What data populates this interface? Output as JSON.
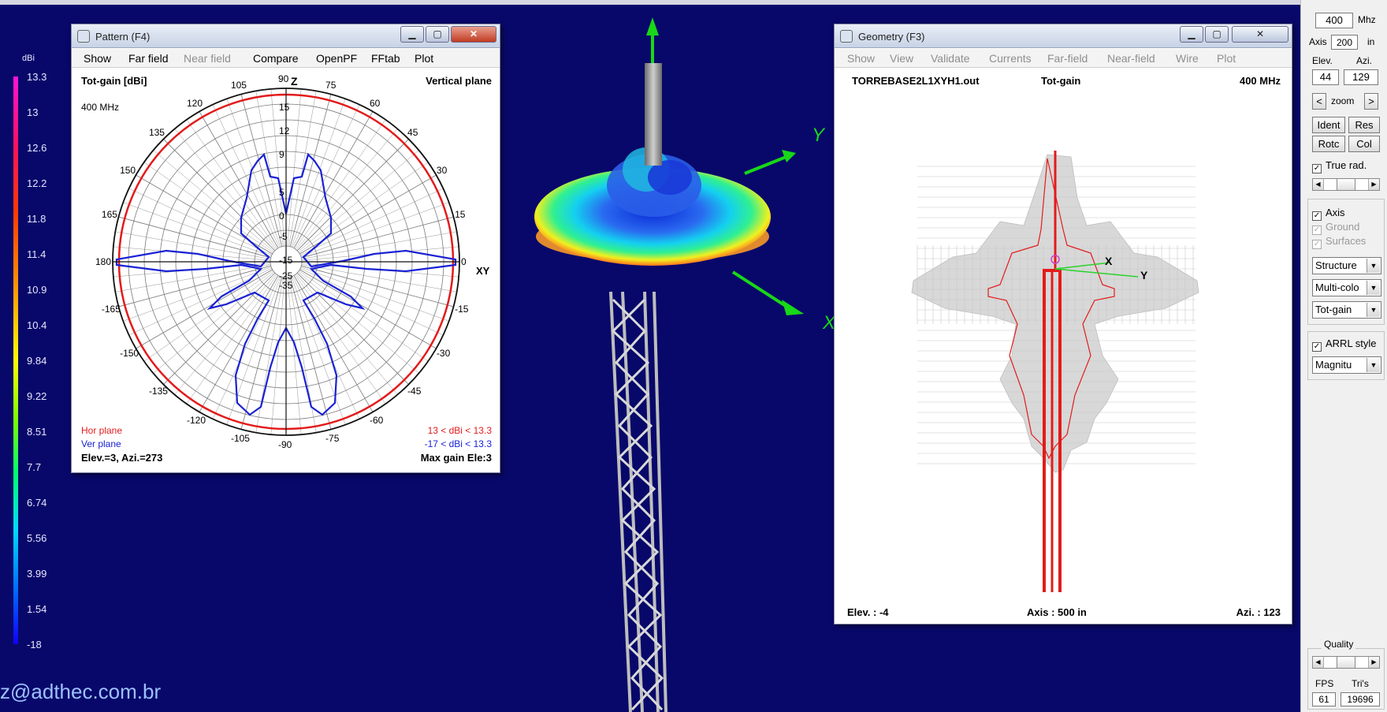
{
  "colors": {
    "background": "#08086a",
    "red_curve": "#e31b1b",
    "blue_curve": "#1a22d4",
    "grid": "#555555"
  },
  "color_scale": {
    "unit": "dBi",
    "labels": [
      "13.3",
      "13",
      "12.6",
      "12.2",
      "11.8",
      "11.4",
      "10.9",
      "10.4",
      "9.84",
      "9.22",
      "8.51",
      "7.7",
      "6.74",
      "5.56",
      "3.99",
      "1.54",
      "-18"
    ]
  },
  "watermark": "z@adthec.com.br",
  "pattern_window": {
    "title": "Pattern   (F4)",
    "menu": [
      {
        "label": "Show",
        "enabled": true
      },
      {
        "label": "Far field",
        "enabled": true
      },
      {
        "label": "Near field",
        "enabled": false
      },
      {
        "label": "Compare",
        "enabled": true
      },
      {
        "label": "OpenPF",
        "enabled": true
      },
      {
        "label": "FFtab",
        "enabled": true
      },
      {
        "label": "Plot",
        "enabled": true
      }
    ],
    "header_left": "Tot-gain [dBi]",
    "header_right": "Vertical plane",
    "freq": "400 MHz",
    "legend_hor": "Hor plane",
    "legend_ver": "Ver plane",
    "range_hor": "13 < dBi < 13.3",
    "range_ver": "-17 < dBi < 13.3",
    "footer_left": "Elev.=3, Azi.=273",
    "footer_right": "Max gain Ele:3",
    "angle_labels": {
      "a90": "90",
      "a105": "105",
      "a120": "120",
      "a135": "135",
      "a150": "150",
      "a165": "165",
      "a180": "180",
      "am165": "-165",
      "am150": "-150",
      "am135": "-135",
      "am120": "-120",
      "am105": "-105",
      "am90": "-90",
      "am75": "-75",
      "am60": "-60",
      "am45": "-45",
      "am30": "-30",
      "am15": "-15",
      "a0": "0",
      "a15": "15",
      "a30": "30",
      "a45": "45",
      "a60": "60",
      "a75": "75"
    },
    "axis_z": "Z",
    "axis_xy": "XY",
    "ring_labels": [
      "15",
      "12",
      "9",
      "5",
      "0",
      "-5",
      "-15",
      "-25",
      "-35"
    ]
  },
  "geometry_window": {
    "title": "Geometry   (F3)",
    "menu": [
      "Show",
      "View",
      "Validate",
      "Currents",
      "Far-field",
      "Near-field",
      "Wire",
      "Plot"
    ],
    "file": "TORREBASE2L1XYH1.out",
    "quantity": "Tot-gain",
    "freq": "400 MHz",
    "footer_elev": "Elev. : -4",
    "footer_axis": "Axis : 500 in",
    "footer_azi": "Azi. : 123",
    "axis_x": "X",
    "axis_y": "Y"
  },
  "scene_axes": {
    "y": "Y",
    "x": "X"
  },
  "panel": {
    "freq_value": "400",
    "freq_unit": "Mhz",
    "axis_label": "Axis",
    "axis_value": "200",
    "axis_unit": "in",
    "elev_label": "Elev.",
    "azi_label": "Azi.",
    "elev_value": "44",
    "azi_value": "129",
    "zoom_left": "<",
    "zoom_label": "zoom",
    "zoom_right": ">",
    "btn_ident": "Ident",
    "btn_res": "Res",
    "btn_rotc": "Rotc",
    "btn_col": "Col",
    "true_rad": "True rad.",
    "axis_chk": "Axis",
    "ground_chk": "Ground",
    "surfaces_chk": "Surfaces",
    "select_structure": "Structure",
    "select_multicolor": "Multi-colo",
    "select_totgain": "Tot-gain",
    "arrl_style": "ARRL style",
    "select_magnitude": "Magnitu",
    "quality_label": "Quality",
    "fps_label": "FPS",
    "tris_label": "Tri's",
    "fps_value": "61",
    "tris_value": "19696",
    "check_mark": "✓"
  }
}
